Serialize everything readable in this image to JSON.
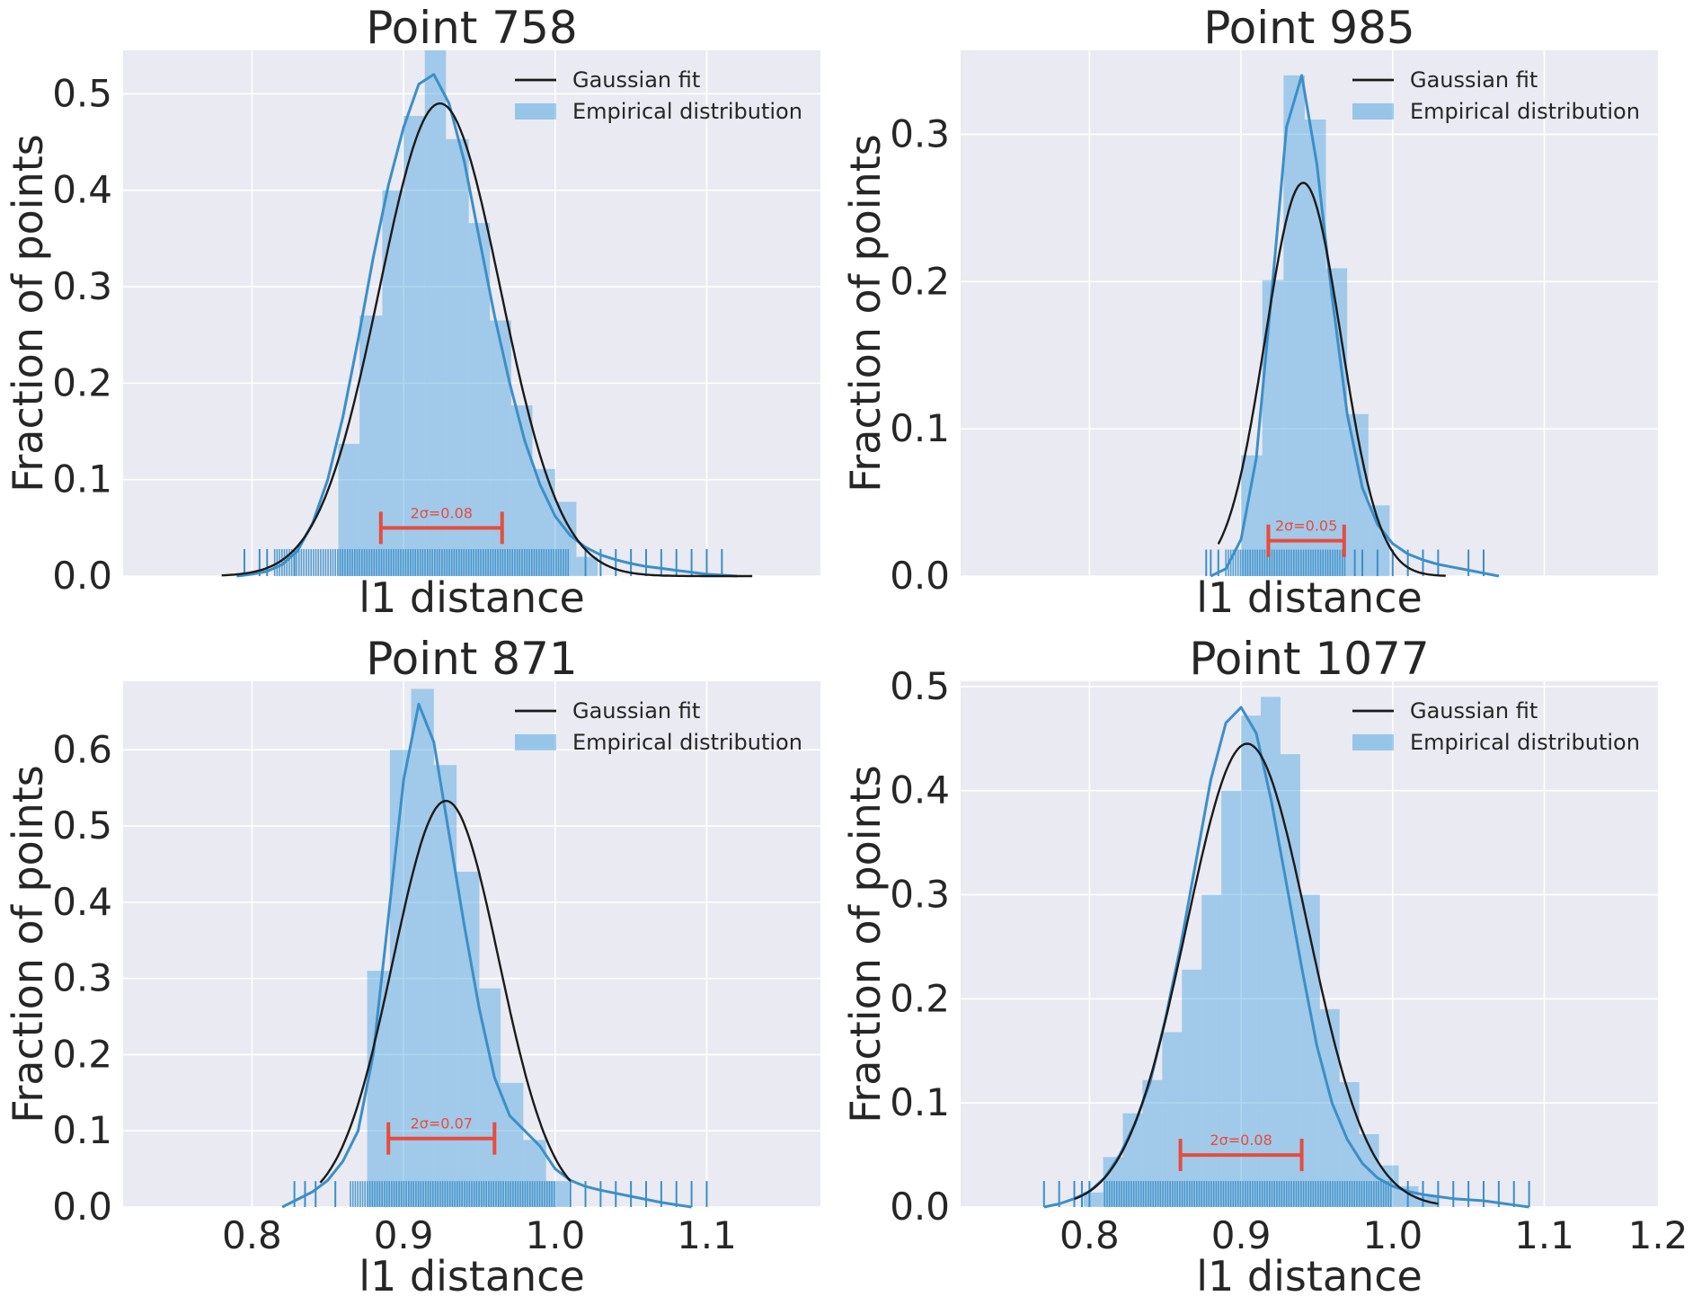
{
  "figure": {
    "columns": 2,
    "rows": 2,
    "shared_x_axis": true
  },
  "colors": {
    "plot_background": "#eaeaf2",
    "grid": "#ffffff",
    "histogram_fill": "#3498db",
    "histogram_alpha": 0.4,
    "kde_line": "#3b8fc8",
    "rug": "#3b8fc8",
    "gaussian_fit": "#1a1a1a",
    "sigma_bracket": "#e74c3c",
    "text": "#262626"
  },
  "chart_data": [
    {
      "type": "histogram",
      "title": "Point 758",
      "xlabel": "l1 distance",
      "ylabel": "Fraction of points",
      "xlim": [
        0.715,
        1.175
      ],
      "ylim": [
        0,
        0.545
      ],
      "xticks": [
        0.8,
        0.9,
        1.0,
        1.1
      ],
      "xtick_labels_visible": false,
      "yticks": [
        0.0,
        0.1,
        0.2,
        0.3,
        0.4,
        0.5
      ],
      "ytick_labels": [
        "0.0",
        "0.1",
        "0.2",
        "0.3",
        "0.4",
        "0.5"
      ],
      "grid": true,
      "legend": {
        "placement": "top-right",
        "entries": [
          "Gaussian fit",
          "Empirical distribution"
        ]
      },
      "histogram": {
        "bin_edges": [
          0.857,
          0.871,
          0.886,
          0.9,
          0.914,
          0.928,
          0.943,
          0.957,
          0.971,
          0.985,
          1.0,
          1.014,
          1.028
        ],
        "values": [
          0.137,
          0.27,
          0.4,
          0.477,
          0.545,
          0.453,
          0.366,
          0.265,
          0.177,
          0.111,
          0.077,
          0.02
        ]
      },
      "kde": {
        "x": [
          0.79,
          0.8,
          0.81,
          0.82,
          0.83,
          0.84,
          0.85,
          0.86,
          0.87,
          0.88,
          0.89,
          0.9,
          0.91,
          0.92,
          0.93,
          0.94,
          0.95,
          0.96,
          0.97,
          0.98,
          0.99,
          1.0,
          1.01,
          1.02,
          1.03,
          1.04,
          1.05,
          1.06,
          1.07,
          1.08,
          1.09,
          1.1,
          1.11,
          1.12
        ],
        "y": [
          0.0,
          0.002,
          0.005,
          0.012,
          0.026,
          0.055,
          0.1,
          0.165,
          0.245,
          0.33,
          0.405,
          0.465,
          0.51,
          0.52,
          0.49,
          0.43,
          0.35,
          0.27,
          0.2,
          0.14,
          0.095,
          0.062,
          0.042,
          0.03,
          0.022,
          0.017,
          0.013,
          0.01,
          0.008,
          0.006,
          0.004,
          0.002,
          0.001,
          0.0
        ]
      },
      "gaussian_fit": {
        "mean": 0.924,
        "peak": 0.49,
        "x_range": [
          0.78,
          1.13
        ]
      },
      "rug": {
        "dense_range": [
          0.815,
          1.01
        ],
        "sparse_ticks": [
          0.795,
          0.805,
          0.81,
          0.828,
          1.02,
          1.03,
          1.04,
          1.05,
          1.06,
          1.07,
          1.08,
          1.09,
          1.1,
          1.11
        ],
        "height": 0.028
      },
      "sigma_bracket": {
        "label": "2σ=0.08",
        "x_start": 0.885,
        "x_end": 0.965,
        "y": 0.05
      }
    },
    {
      "type": "histogram",
      "title": "Point 985",
      "xlabel": "l1 distance",
      "ylabel": "Fraction of points",
      "xlim": [
        0.715,
        1.175
      ],
      "ylim": [
        0,
        0.357
      ],
      "xticks": [
        0.8,
        0.9,
        1.0,
        1.1
      ],
      "xtick_labels_visible": false,
      "yticks": [
        0.0,
        0.1,
        0.2,
        0.3
      ],
      "ytick_labels": [
        "0.0",
        "0.1",
        "0.2",
        "0.3"
      ],
      "grid": true,
      "legend": {
        "placement": "top-right",
        "entries": [
          "Gaussian fit",
          "Empirical distribution"
        ]
      },
      "histogram": {
        "bin_edges": [
          0.9,
          0.914,
          0.928,
          0.942,
          0.956,
          0.97,
          0.984,
          0.998
        ],
        "values": [
          0.082,
          0.201,
          0.34,
          0.31,
          0.209,
          0.11,
          0.048
        ]
      },
      "kde": {
        "x": [
          0.88,
          0.89,
          0.9,
          0.91,
          0.92,
          0.93,
          0.94,
          0.95,
          0.96,
          0.97,
          0.98,
          0.99,
          1.0,
          1.01,
          1.02,
          1.03,
          1.04,
          1.05,
          1.06,
          1.07
        ],
        "y": [
          0.0,
          0.005,
          0.025,
          0.08,
          0.19,
          0.305,
          0.34,
          0.28,
          0.19,
          0.11,
          0.06,
          0.035,
          0.022,
          0.015,
          0.011,
          0.008,
          0.006,
          0.004,
          0.002,
          0.0
        ]
      },
      "gaussian_fit": {
        "mean": 0.941,
        "peak": 0.267,
        "x_range": [
          0.885,
          1.035
        ]
      },
      "rug": {
        "dense_range": [
          0.89,
          0.97
        ],
        "sparse_ticks": [
          0.877,
          0.88,
          0.885,
          0.975,
          0.98,
          0.99,
          1.0,
          1.01,
          1.02,
          1.03,
          1.05,
          1.06
        ],
        "height": 0.018
      },
      "sigma_bracket": {
        "label": "2σ=0.05",
        "x_start": 0.918,
        "x_end": 0.968,
        "y": 0.024
      }
    },
    {
      "type": "histogram",
      "title": "Point 871",
      "xlabel": "l1 distance",
      "ylabel": "Fraction of points",
      "xlim": [
        0.715,
        1.175
      ],
      "ylim": [
        0,
        0.69
      ],
      "xticks": [
        0.8,
        0.9,
        1.0,
        1.1
      ],
      "xtick_labels": [
        "0.8",
        "0.9",
        "1.0",
        "1.1"
      ],
      "yticks": [
        0.0,
        0.1,
        0.2,
        0.3,
        0.4,
        0.5,
        0.6
      ],
      "ytick_labels": [
        "0.0",
        "0.1",
        "0.2",
        "0.3",
        "0.4",
        "0.5",
        "0.6"
      ],
      "grid": true,
      "legend": {
        "placement": "top-right",
        "entries": [
          "Gaussian fit",
          "Empirical distribution"
        ]
      },
      "histogram": {
        "bin_edges": [
          0.876,
          0.891,
          0.905,
          0.92,
          0.935,
          0.95,
          0.964,
          0.979,
          0.994,
          1.009
        ],
        "values": [
          0.31,
          0.6,
          0.68,
          0.58,
          0.44,
          0.287,
          0.163,
          0.088,
          0.034
        ]
      },
      "kde": {
        "x": [
          0.82,
          0.83,
          0.84,
          0.85,
          0.86,
          0.87,
          0.88,
          0.89,
          0.9,
          0.91,
          0.92,
          0.93,
          0.94,
          0.95,
          0.96,
          0.97,
          0.98,
          0.99,
          1.0,
          1.01,
          1.02,
          1.03,
          1.04,
          1.05,
          1.06,
          1.07,
          1.08,
          1.09
        ],
        "y": [
          0.0,
          0.01,
          0.02,
          0.035,
          0.06,
          0.1,
          0.2,
          0.38,
          0.56,
          0.66,
          0.61,
          0.49,
          0.37,
          0.26,
          0.17,
          0.12,
          0.1,
          0.08,
          0.05,
          0.035,
          0.027,
          0.022,
          0.018,
          0.014,
          0.01,
          0.006,
          0.003,
          0.0
        ]
      },
      "gaussian_fit": {
        "mean": 0.928,
        "peak": 0.533,
        "x_range": [
          0.845,
          1.01
        ]
      },
      "rug": {
        "dense_range": [
          0.865,
          1.0
        ],
        "sparse_ticks": [
          0.828,
          0.835,
          0.842,
          0.855,
          1.01,
          1.02,
          1.03,
          1.04,
          1.05,
          1.06,
          1.07,
          1.08,
          1.09,
          1.1
        ],
        "height": 0.034
      },
      "sigma_bracket": {
        "label": "2σ=0.07",
        "x_start": 0.89,
        "x_end": 0.96,
        "y": 0.09
      }
    },
    {
      "type": "histogram",
      "title": "Point 1077",
      "xlabel": "l1 distance",
      "ylabel": "Fraction of points",
      "xlim": [
        0.715,
        1.175
      ],
      "ylim": [
        0,
        0.505
      ],
      "xticks": [
        0.8,
        0.9,
        1.0,
        1.1
      ],
      "xtick_labels": [
        "0.8",
        "0.9",
        "1.0",
        "1.1"
      ],
      "extra_xtick_label": "1.2",
      "yticks": [
        0.0,
        0.1,
        0.2,
        0.3,
        0.4,
        0.5
      ],
      "ytick_labels": [
        "0.0",
        "0.1",
        "0.2",
        "0.3",
        "0.4",
        "0.5"
      ],
      "grid": true,
      "legend": {
        "placement": "top-right",
        "entries": [
          "Gaussian fit",
          "Empirical distribution"
        ]
      },
      "histogram": {
        "bin_edges": [
          0.796,
          0.809,
          0.822,
          0.835,
          0.848,
          0.861,
          0.874,
          0.887,
          0.9,
          0.913,
          0.926,
          0.939,
          0.952,
          0.965,
          0.978,
          0.991,
          1.004,
          1.017,
          1.03
        ],
        "values": [
          0.014,
          0.048,
          0.09,
          0.122,
          0.168,
          0.228,
          0.3,
          0.4,
          0.472,
          0.49,
          0.435,
          0.3,
          0.19,
          0.12,
          0.07,
          0.04,
          0.02,
          0.01
        ]
      },
      "kde": {
        "x": [
          0.77,
          0.78,
          0.79,
          0.8,
          0.81,
          0.82,
          0.83,
          0.84,
          0.85,
          0.86,
          0.87,
          0.88,
          0.89,
          0.9,
          0.91,
          0.92,
          0.93,
          0.94,
          0.95,
          0.96,
          0.97,
          0.98,
          0.99,
          1.0,
          1.01,
          1.02,
          1.03,
          1.04,
          1.05,
          1.06,
          1.07,
          1.08,
          1.09
        ],
        "y": [
          0.0,
          0.003,
          0.008,
          0.015,
          0.028,
          0.05,
          0.08,
          0.12,
          0.18,
          0.25,
          0.33,
          0.41,
          0.465,
          0.48,
          0.455,
          0.39,
          0.31,
          0.23,
          0.155,
          0.1,
          0.065,
          0.042,
          0.028,
          0.02,
          0.015,
          0.012,
          0.01,
          0.008,
          0.007,
          0.006,
          0.004,
          0.002,
          0.0
        ]
      },
      "gaussian_fit": {
        "mean": 0.904,
        "peak": 0.445,
        "x_range": [
          0.79,
          1.03
        ]
      },
      "rug": {
        "dense_range": [
          0.81,
          1.0
        ],
        "sparse_ticks": [
          0.77,
          0.78,
          0.79,
          0.795,
          0.8,
          1.01,
          1.02,
          1.03,
          1.04,
          1.05,
          1.06,
          1.07,
          1.08,
          1.09
        ],
        "height": 0.025
      },
      "sigma_bracket": {
        "label": "2σ=0.08",
        "x_start": 0.86,
        "x_end": 0.94,
        "y": 0.05
      }
    }
  ]
}
